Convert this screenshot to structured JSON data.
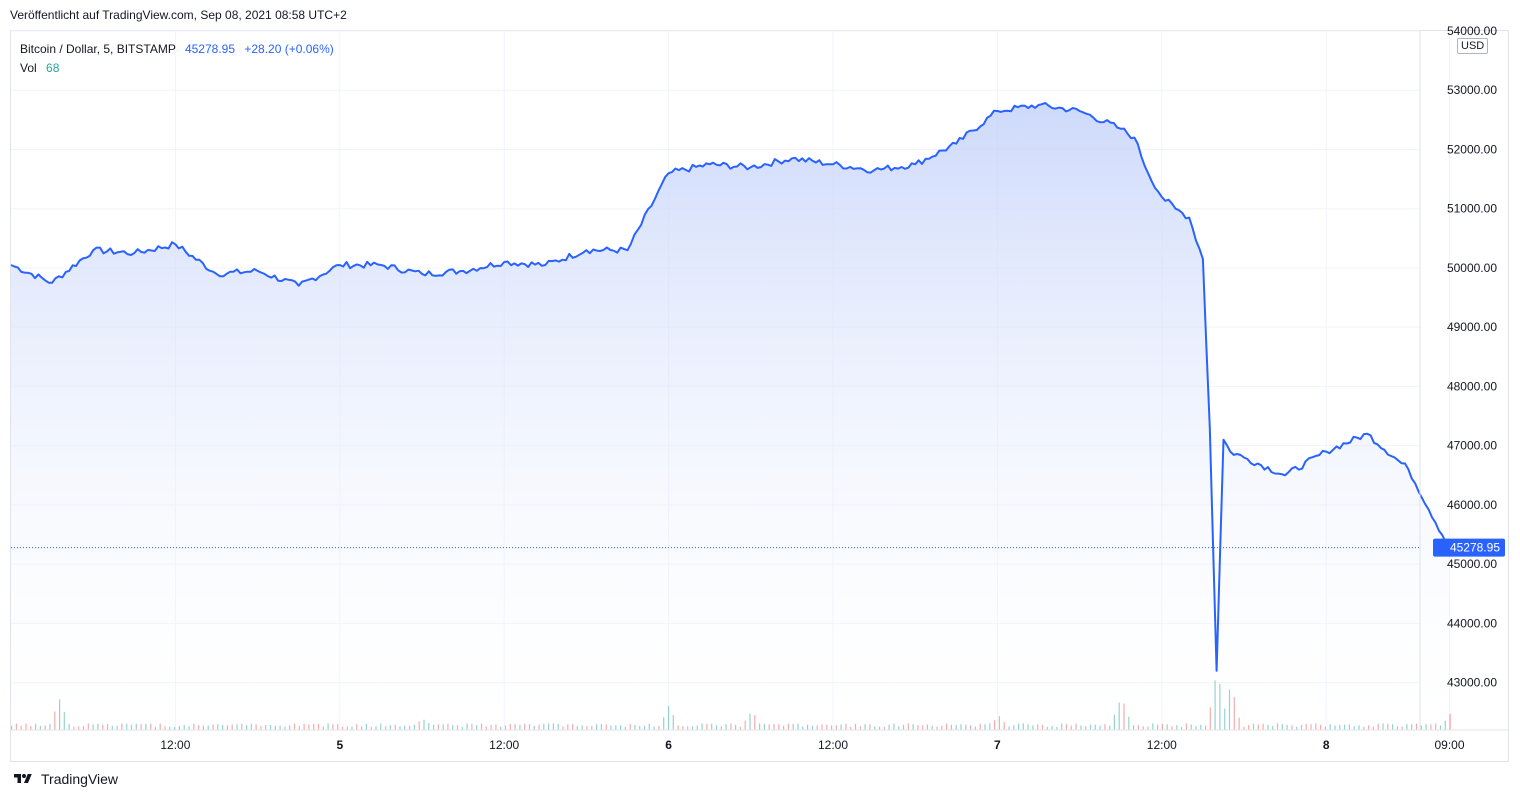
{
  "header": {
    "published": "Veröffentlicht auf TradingView.com, Sep 08, 2021 08:58 UTC+2"
  },
  "legend": {
    "symbol": "Bitcoin / Dollar, 5, BITSTAMP",
    "last": "45278.95",
    "change": "+28.20 (+0.06%)",
    "volume_label": "Vol",
    "volume_value": "68"
  },
  "currency": "USD",
  "last_price_label": "45278.95",
  "brand": {
    "name": "TradingView",
    "logo_icon": "tradingview-logo-icon"
  },
  "colors": {
    "line": "#2962ff",
    "area_top": "#c5d3fa",
    "area_bottom": "#ffffff",
    "vol_up": "#26a69a",
    "vol_down": "#ef5350",
    "grid": "#f0f3fa"
  },
  "chart_data": {
    "type": "area",
    "series": [
      {
        "name": "Bitcoin / Dollar",
        "x": [
          "Sep 4 00:00",
          "Sep 4 03:00",
          "Sep 4 06:00",
          "Sep 4 09:00",
          "Sep 4 12:00",
          "Sep 4 15:00",
          "Sep 4 18:00",
          "Sep 4 21:00",
          "Sep 5 00:00",
          "Sep 5 03:00",
          "Sep 5 06:00",
          "Sep 5 09:00",
          "Sep 5 12:00",
          "Sep 5 15:00",
          "Sep 5 18:00",
          "Sep 5 21:00",
          "Sep 6 00:00",
          "Sep 6 03:00",
          "Sep 6 06:00",
          "Sep 6 09:00",
          "Sep 6 12:00",
          "Sep 6 15:00",
          "Sep 6 18:00",
          "Sep 6 21:00",
          "Sep 7 00:00",
          "Sep 7 03:00",
          "Sep 7 06:00",
          "Sep 7 09:00",
          "Sep 7 10:00",
          "Sep 7 11:00",
          "Sep 7 12:00",
          "Sep 7 13:00",
          "Sep 7 14:00",
          "Sep 7 15:00",
          "Sep 7 15:30",
          "Sep 7 16:00",
          "Sep 7 16:30",
          "Sep 7 17:00",
          "Sep 7 18:00",
          "Sep 7 21:00",
          "Sep 8 00:00",
          "Sep 8 03:00",
          "Sep 8 06:00",
          "Sep 8 08:58"
        ],
        "values": [
          50050,
          49750,
          50300,
          50250,
          50400,
          49900,
          49950,
          49700,
          50050,
          50050,
          49900,
          49950,
          50100,
          50050,
          50300,
          50300,
          51600,
          51750,
          51700,
          51850,
          51750,
          51650,
          51750,
          52100,
          52650,
          52750,
          52650,
          52350,
          52200,
          51600,
          51200,
          51000,
          50850,
          50150,
          47300,
          43200,
          47100,
          46900,
          46800,
          46500,
          46900,
          47200,
          46600,
          45278.95
        ]
      }
    ],
    "volume": {
      "name": "Vol",
      "x": [
        "Sep 4 03:30",
        "Sep 5 06:00",
        "Sep 6 00:00",
        "Sep 6 06:00",
        "Sep 7 00:00",
        "Sep 7 09:00",
        "Sep 7 16:00",
        "Sep 7 17:00",
        "Sep 8 09:00"
      ],
      "values": [
        40,
        12,
        30,
        25,
        18,
        45,
        80,
        60,
        20
      ]
    },
    "y_axis": {
      "ticks": [
        "54000.00",
        "53000.00",
        "52000.00",
        "51000.00",
        "50000.00",
        "49000.00",
        "48000.00",
        "47000.00",
        "46000.00",
        "45000.00",
        "44000.00",
        "43000.00"
      ],
      "ylim": [
        42200,
        54000
      ]
    },
    "x_axis": {
      "ticks": [
        "12:00",
        "5",
        "12:00",
        "6",
        "12:00",
        "7",
        "12:00",
        "8",
        "09:00"
      ]
    },
    "last_price": 45278.95,
    "grid": true
  }
}
